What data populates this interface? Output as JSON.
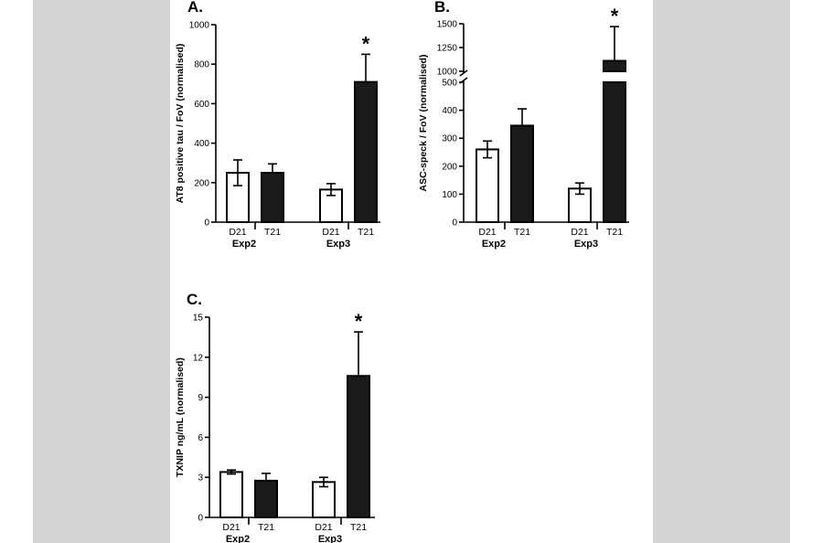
{
  "chart_data": [
    {
      "type": "bar",
      "panel_label": "A.",
      "ylabel": "AT8 positive tau / FoV (normalised)",
      "ylim": [
        0,
        1000
      ],
      "yticks": [
        "0",
        "200",
        "400",
        "600",
        "800",
        "1000"
      ],
      "groups": [
        "Exp2",
        "Exp3"
      ],
      "bars": [
        {
          "group": "Exp2",
          "label": "D21",
          "value": 250,
          "error": 65,
          "fill": "#ffffff",
          "sig": ""
        },
        {
          "group": "Exp2",
          "label": "T21",
          "value": 250,
          "error": 45,
          "fill": "#1a1a1a",
          "sig": ""
        },
        {
          "group": "Exp3",
          "label": "D21",
          "value": 165,
          "error": 30,
          "fill": "#ffffff",
          "sig": ""
        },
        {
          "group": "Exp3",
          "label": "T21",
          "value": 710,
          "error": 140,
          "fill": "#1a1a1a",
          "sig": "*"
        }
      ]
    },
    {
      "type": "bar",
      "panel_label": "B.",
      "ylabel": "ASC-speck / FoV (normalised)",
      "broken_axis": true,
      "ylim_lower": [
        0,
        500
      ],
      "ylim_upper": [
        1000,
        1500
      ],
      "yticks_lower": [
        "0",
        "100",
        "200",
        "300",
        "400",
        "500"
      ],
      "yticks_upper": [
        "1000",
        "1250",
        "1500"
      ],
      "groups": [
        "Exp2",
        "Exp3"
      ],
      "bars": [
        {
          "group": "Exp2",
          "label": "D21",
          "value": 260,
          "error": 30,
          "fill": "#ffffff",
          "sig": ""
        },
        {
          "group": "Exp2",
          "label": "T21",
          "value": 345,
          "error": 60,
          "fill": "#1a1a1a",
          "sig": ""
        },
        {
          "group": "Exp3",
          "label": "D21",
          "value": 120,
          "error": 20,
          "fill": "#ffffff",
          "sig": ""
        },
        {
          "group": "Exp3",
          "label": "T21",
          "value": 1110,
          "error": 360,
          "fill": "#1a1a1a",
          "sig": "*"
        }
      ]
    },
    {
      "type": "bar",
      "panel_label": "C.",
      "ylabel": "TXNIP ng/mL (normalised)",
      "ylim": [
        0,
        15
      ],
      "yticks": [
        "0",
        "3",
        "6",
        "9",
        "12",
        "15"
      ],
      "groups": [
        "Exp2",
        "Exp3"
      ],
      "bars": [
        {
          "group": "Exp2",
          "label": "D21",
          "value": 3.4,
          "error": 0.15,
          "fill": "#ffffff",
          "sig": ""
        },
        {
          "group": "Exp2",
          "label": "T21",
          "value": 2.75,
          "error": 0.55,
          "fill": "#1a1a1a",
          "sig": ""
        },
        {
          "group": "Exp3",
          "label": "D21",
          "value": 2.65,
          "error": 0.35,
          "fill": "#ffffff",
          "sig": ""
        },
        {
          "group": "Exp3",
          "label": "T21",
          "value": 10.6,
          "error": 3.3,
          "fill": "#1a1a1a",
          "sig": "*"
        }
      ]
    }
  ]
}
